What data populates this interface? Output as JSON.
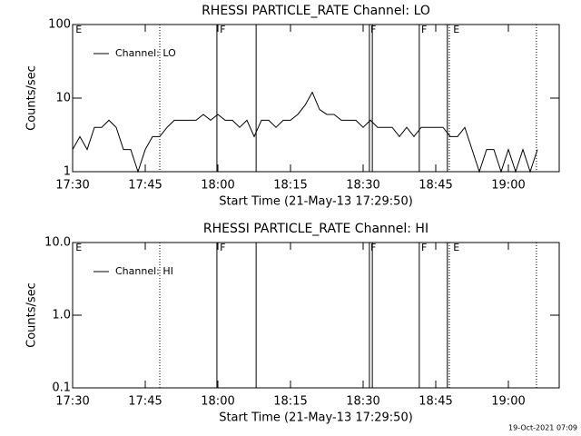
{
  "chart_data": [
    {
      "type": "line",
      "title": "RHESSI PARTICLE_RATE Channel: LO",
      "xlabel": "Start Time (21-May-13 17:29:50)",
      "ylabel": "Counts/sec",
      "xlim": [
        0,
        100.5
      ],
      "ylim": [
        1,
        100
      ],
      "log_y": true,
      "xticks": [
        {
          "value": 0,
          "label": "17:30"
        },
        {
          "value": 15,
          "label": "17:45"
        },
        {
          "value": 30,
          "label": "18:00"
        },
        {
          "value": 45,
          "label": "18:15"
        },
        {
          "value": 60,
          "label": "18:30"
        },
        {
          "value": 75,
          "label": "18:45"
        },
        {
          "value": 90,
          "label": "19:00"
        }
      ],
      "yticks": [
        1,
        10,
        100
      ],
      "x": [
        0,
        1.5,
        3,
        4.5,
        6,
        7.5,
        9,
        10.5,
        12,
        13.5,
        15,
        16.5,
        18,
        19.5,
        21,
        22.5,
        24,
        25.5,
        27,
        28.5,
        30,
        31.5,
        33,
        34.5,
        36,
        37.5,
        39,
        40.5,
        42,
        43.5,
        45,
        46.5,
        48,
        49.5,
        51,
        52.5,
        54,
        55.5,
        57,
        58.5,
        60,
        61.5,
        63,
        64.5,
        66,
        67.5,
        69,
        70.5,
        72,
        73.5,
        75,
        76.5,
        78,
        79.5,
        81,
        82.5,
        84,
        85.5,
        87,
        88.5,
        90,
        91.5,
        93,
        94.5,
        96
      ],
      "series": [
        {
          "name": "Channel: LO",
          "color": "#000000",
          "values": [
            2,
            3,
            2,
            4,
            4,
            5,
            4,
            2,
            2,
            1,
            2,
            3,
            3,
            4,
            5,
            5,
            5,
            5,
            6,
            5,
            6,
            5,
            5,
            4,
            5,
            3,
            5,
            5,
            4,
            5,
            5,
            6,
            8,
            12,
            7,
            6,
            6,
            5,
            5,
            5,
            4,
            5,
            4,
            4,
            4,
            3,
            4,
            3,
            4,
            4,
            4,
            4,
            3,
            3,
            4,
            2,
            1,
            2,
            2,
            1,
            2,
            1,
            2,
            1,
            2
          ]
        }
      ],
      "events": [
        {
          "x": 18.0,
          "style": "dotted"
        },
        {
          "x": 29.8,
          "style": "solid"
        },
        {
          "x": 37.9,
          "style": "solid"
        },
        {
          "x": 61.3,
          "style": "solid"
        },
        {
          "x": 61.9,
          "style": "solid"
        },
        {
          "x": 71.6,
          "style": "solid"
        },
        {
          "x": 77.4,
          "style": "solid"
        },
        {
          "x": 77.8,
          "style": "dotted"
        },
        {
          "x": 95.8,
          "style": "dotted"
        }
      ],
      "event_labels": [
        {
          "x": 0.6,
          "label": "E"
        },
        {
          "x": 30.4,
          "label": "F"
        },
        {
          "x": 61.5,
          "label": "F"
        },
        {
          "x": 72,
          "label": "F"
        },
        {
          "x": 78.6,
          "label": "E"
        }
      ]
    },
    {
      "type": "line",
      "title": "RHESSI PARTICLE_RATE Channel: HI",
      "xlabel": "Start Time (21-May-13 17:29:50)",
      "ylabel": "Counts/sec",
      "xlim": [
        0,
        100.5
      ],
      "ylim": [
        0.1,
        10
      ],
      "log_y": true,
      "xticks": [
        {
          "value": 0,
          "label": "17:30"
        },
        {
          "value": 15,
          "label": "17:45"
        },
        {
          "value": 30,
          "label": "18:00"
        },
        {
          "value": 45,
          "label": "18:15"
        },
        {
          "value": 60,
          "label": "18:30"
        },
        {
          "value": 75,
          "label": "18:45"
        },
        {
          "value": 90,
          "label": "19:00"
        }
      ],
      "yticks": [
        0.1,
        {
          "value": 1,
          "label": "1.0"
        },
        {
          "value": 10,
          "label": "10.0"
        }
      ],
      "x": [],
      "series": [
        {
          "name": "Channel: HI",
          "color": "#000000",
          "values": []
        }
      ],
      "events": [
        {
          "x": 18.0,
          "style": "dotted"
        },
        {
          "x": 29.8,
          "style": "solid"
        },
        {
          "x": 37.9,
          "style": "solid"
        },
        {
          "x": 61.3,
          "style": "solid"
        },
        {
          "x": 61.9,
          "style": "solid"
        },
        {
          "x": 71.6,
          "style": "solid"
        },
        {
          "x": 77.4,
          "style": "solid"
        },
        {
          "x": 77.8,
          "style": "dotted"
        },
        {
          "x": 95.8,
          "style": "dotted"
        }
      ],
      "event_labels": [
        {
          "x": 0.6,
          "label": "E"
        },
        {
          "x": 30.4,
          "label": "F"
        },
        {
          "x": 61.5,
          "label": "F"
        },
        {
          "x": 72,
          "label": "F"
        },
        {
          "x": 78.6,
          "label": "E"
        }
      ]
    }
  ],
  "footer": "19-Oct-2021 07:09"
}
